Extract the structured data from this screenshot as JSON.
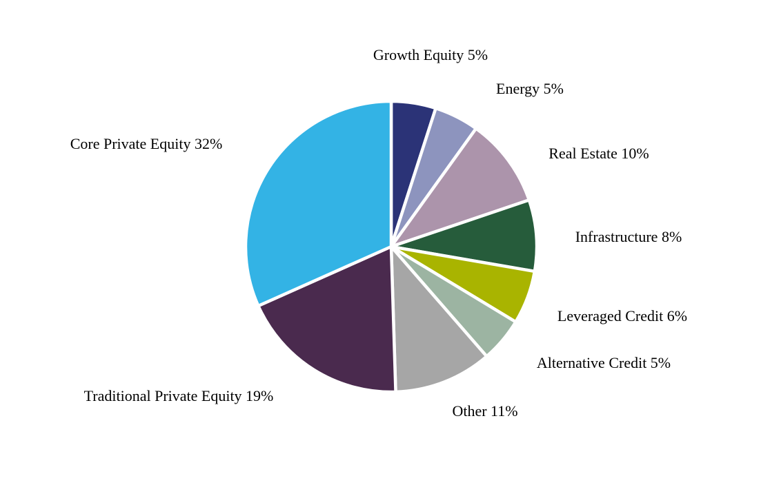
{
  "page": {
    "background": "#FFFFFF",
    "text_color": "#000000"
  },
  "chart_data": {
    "type": "pie",
    "categories": [
      "Growth Equity",
      "Energy",
      "Real Estate",
      "Infrastructure",
      "Leveraged Credit",
      "Alternative Credit",
      "Other",
      "Traditional Private Equity",
      "Core Private Equity"
    ],
    "values": [
      5,
      5,
      10,
      8,
      6,
      5,
      11,
      19,
      32
    ],
    "unit": "%",
    "labels": [
      "Growth Equity 5%",
      "Energy 5%",
      "Real Estate 10%",
      "Infrastructure 8%",
      "Leveraged Credit 6%",
      "Alternative Credit 5%",
      "Other 11%",
      "Traditional Private Equity 19%",
      "Core Private Equity 32%"
    ],
    "colors": [
      "#2B3377",
      "#8D94BE",
      "#AC94AB",
      "#265C3B",
      "#A9B400",
      "#9CB4A2",
      "#A6A6A6",
      "#4A2A4E",
      "#33B3E5"
    ],
    "separator_color": "#FFFFFF",
    "start_angle_deg": 0,
    "direction": "clockwise",
    "label_position": "outside",
    "legend": "none",
    "grid": "off"
  }
}
